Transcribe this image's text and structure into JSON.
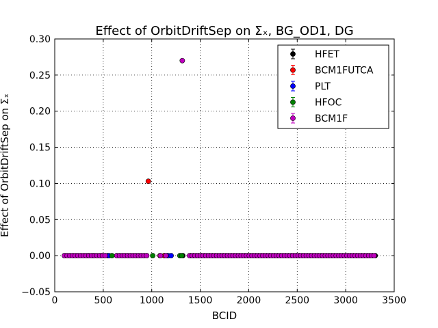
{
  "chart_data": {
    "type": "scatter",
    "title": "Effect of OrbitDriftSep on Σₓ, BG_OD1, DG",
    "xlabel": "BCID",
    "ylabel": "Effect of OrbitDriftSep on Σₓ",
    "xlim": [
      0,
      3500
    ],
    "ylim": [
      -0.05,
      0.3
    ],
    "xticks": [
      "0",
      "500",
      "1000",
      "1500",
      "2000",
      "2500",
      "3000",
      "3500"
    ],
    "yticks": [
      "−0.05",
      "0.00",
      "0.05",
      "0.10",
      "0.15",
      "0.20",
      "0.25",
      "0.30"
    ],
    "grid": true,
    "legend_position": "top-right",
    "series": [
      {
        "name": "HFET",
        "color": "#000000",
        "clusters": [
          [
            100,
            560
          ],
          [
            640,
            960
          ],
          [
            1130,
            1160
          ],
          [
            1400,
            3330
          ]
        ],
        "step": 28,
        "points": [
          [
            1320,
            0.0
          ]
        ]
      },
      {
        "name": "BCM1FUTCA",
        "color": "#ff0000",
        "clusters": [],
        "step": 28,
        "points": [
          [
            965,
            0.103
          ],
          [
            1085,
            0.0
          ],
          [
            1130,
            0.0
          ]
        ]
      },
      {
        "name": "PLT",
        "color": "#0000ff",
        "clusters": [],
        "step": 28,
        "points": [
          [
            400,
            0.0
          ],
          [
            480,
            0.0
          ],
          [
            560,
            0.0
          ],
          [
            1170,
            0.0
          ],
          [
            1200,
            0.0
          ]
        ]
      },
      {
        "name": "HFOC",
        "color": "#008000",
        "clusters": [],
        "step": 28,
        "points": [
          [
            350,
            0.0
          ],
          [
            590,
            0.0
          ],
          [
            1010,
            0.0
          ],
          [
            1290,
            0.0
          ],
          [
            1310,
            0.0
          ]
        ]
      },
      {
        "name": "BCM1F",
        "color": "#bf00bf",
        "clusters": [
          [
            100,
            540
          ],
          [
            640,
            960
          ],
          [
            1390,
            3320
          ]
        ],
        "step": 28,
        "points": [
          [
            1315,
            0.27
          ],
          [
            1090,
            0.0
          ],
          [
            1145,
            0.0
          ]
        ]
      }
    ]
  }
}
